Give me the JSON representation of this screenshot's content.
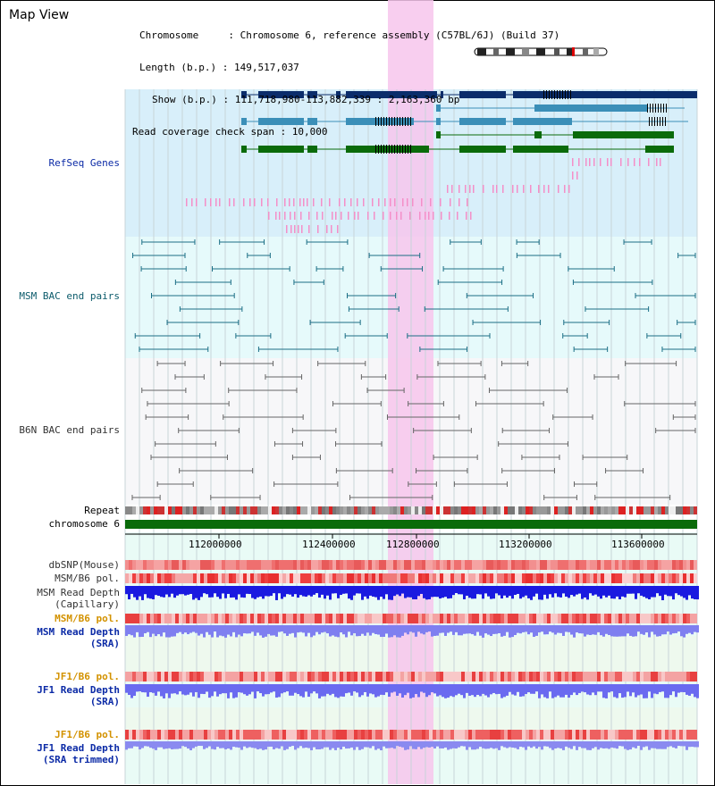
{
  "title": "Map View",
  "info": {
    "chromosome": "Chromosome     : Chromosome 6, reference assembly (C57BL/6J) (Build 37)",
    "length": "Length (b.p.) : 149,517,037",
    "show": "Show (b.p.) : 111,718,980-113,882,339 : 2,163,360 bp",
    "coverage": "Read coverage check span : 10,000"
  },
  "tracks": {
    "refseq": "RefSeq Genes",
    "msm_bac": "MSM BAC end pairs",
    "b6n_bac": "B6N BAC end pairs",
    "repeat": "Repeat",
    "chromosome": "chromosome 6",
    "dbsnp": "dbSNP(Mouse)",
    "msm_b6_pol_1": "MSM/B6 pol.",
    "msm_read_cap_1": "MSM Read Depth",
    "msm_read_cap_2": "(Capillary)",
    "msm_b6_pol_2": "MSM/B6 pol.",
    "msm_read_sra_1": "MSM Read Depth",
    "msm_read_sra_2": "(SRA)",
    "jf1_b6_pol_1": "JF1/B6 pol.",
    "jf1_read_sra_1": "JF1 Read Depth",
    "jf1_read_sra_2": "(SRA)",
    "jf1_b6_pol_2": "JF1/B6 pol.",
    "jf1_read_trim_1": "JF1 Read Depth",
    "jf1_read_trim_2": "(SRA trimmed)"
  },
  "axis": {
    "ticks": [
      "112000000",
      "112400000",
      "112800000",
      "113200000",
      "113600000"
    ]
  },
  "colors": {
    "gene_dark": "#0b2d6b",
    "gene_mid": "#3b8fb8",
    "gene_green": "#0a6b0a",
    "highlight": "#f7c6ec",
    "refseq_bg": "#d8effa",
    "msm_bg": "#e6fafb",
    "chrom_bar": "#0a6b0a"
  }
}
